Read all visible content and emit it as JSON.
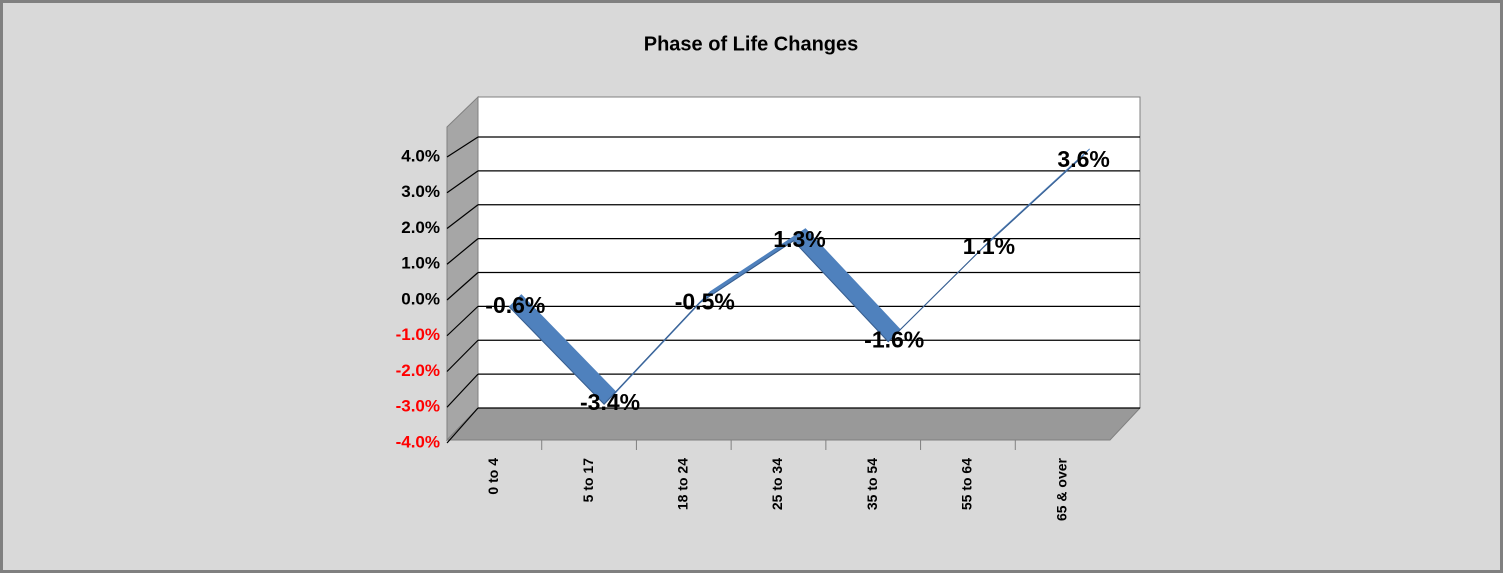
{
  "chart_data": {
    "type": "line",
    "title": "Phase of Life Changes",
    "categories": [
      "0 to 4",
      "5 to 17",
      "18 to 24",
      "25 to 34",
      "35 to 54",
      "55 to 64",
      "65 & over"
    ],
    "values": [
      -0.6,
      -3.4,
      -0.5,
      1.3,
      -1.6,
      1.1,
      3.6
    ],
    "value_labels": [
      "-0.6%",
      "-3.4%",
      "-0.5%",
      "1.3%",
      "-1.6%",
      "1.1%",
      "3.6%"
    ],
    "color": "#4f81bd",
    "negative_tick_color": "#ff0000",
    "ylim": [
      -4,
      4
    ],
    "yticks": [
      {
        "value": -4,
        "label": "-4.0%"
      },
      {
        "value": -3,
        "label": "-3.0%"
      },
      {
        "value": -2,
        "label": "-2.0%"
      },
      {
        "value": -1,
        "label": "-1.0%"
      },
      {
        "value": 0,
        "label": "0.0%"
      },
      {
        "value": 1,
        "label": "1.0%"
      },
      {
        "value": 2,
        "label": "2.0%"
      },
      {
        "value": 3,
        "label": "3.0%"
      },
      {
        "value": 4,
        "label": "4.0%"
      }
    ],
    "grid": true
  }
}
